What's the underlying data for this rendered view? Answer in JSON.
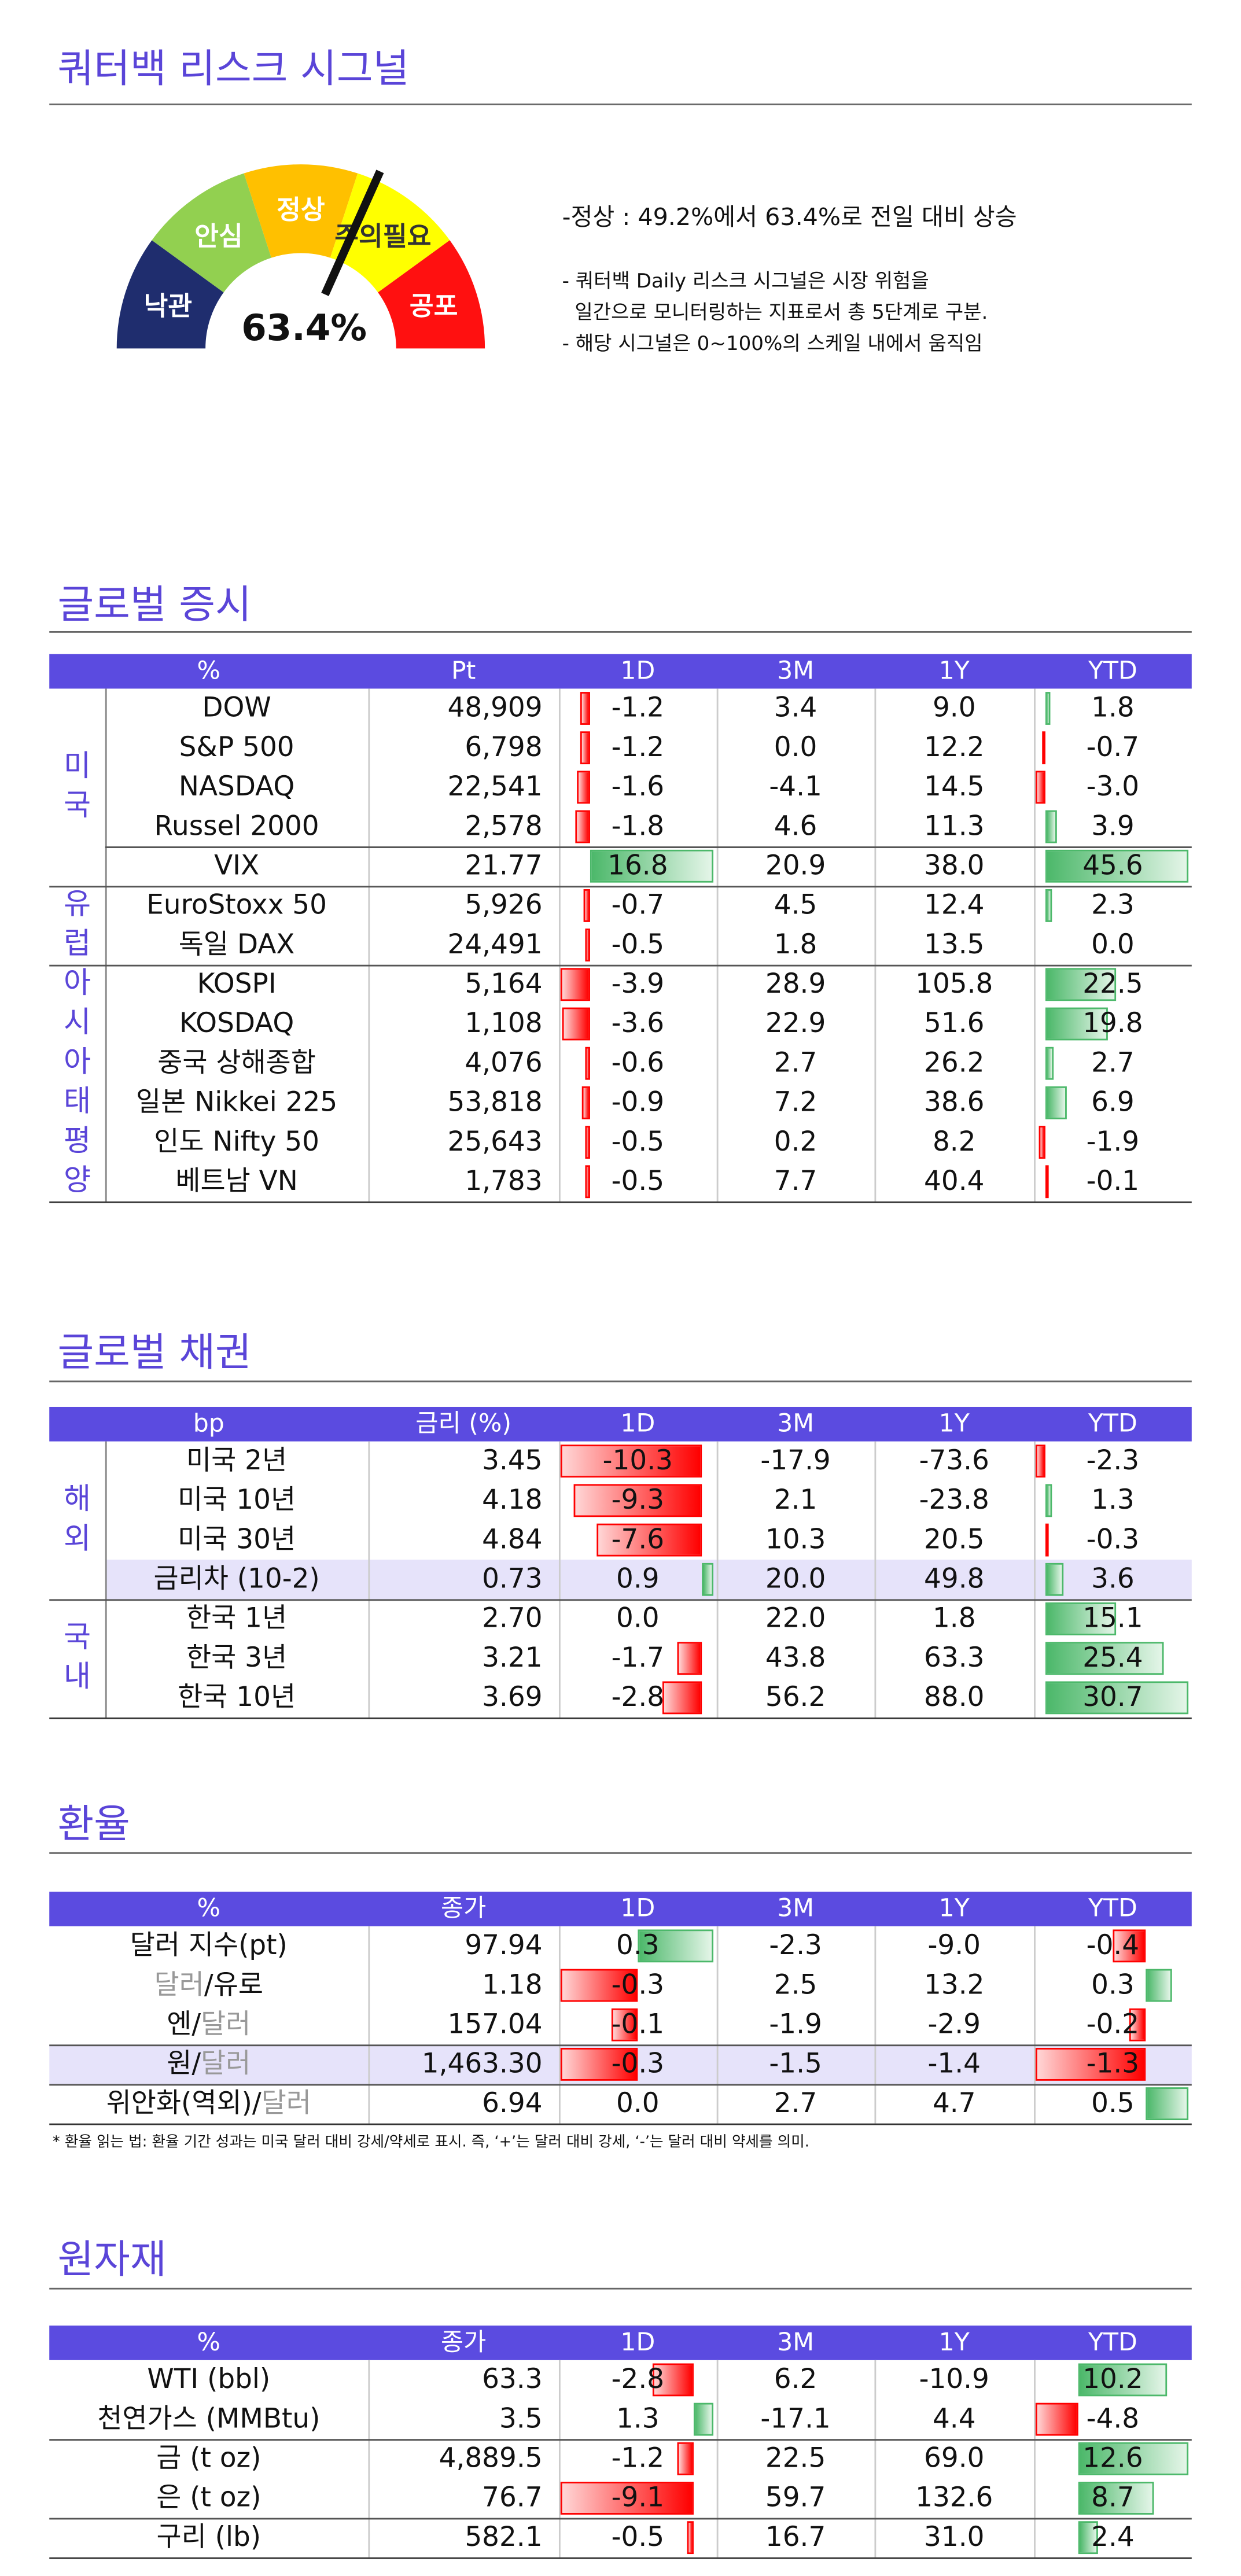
{
  "header": {
    "title": "쿼터백 리스크 시그널"
  },
  "gauge": {
    "levels": [
      "낙관",
      "안심",
      "정상",
      "주의필요",
      "공포"
    ],
    "value": 63.4,
    "value_label": "63.4%"
  },
  "summary": "-정상 : 49.2%에서 63.4%로 전일 대비 상승",
  "notes": [
    "- 쿼터백 Daily 리스크 시그널은 시장 위험을",
    "  일간으로 모니터링하는 지표로서 총 5단계로 구분.",
    "- 해당 시그널은 0~100%의 스케일 내에서 움직임"
  ],
  "sections": [
    {
      "title": "글로벌 증시",
      "columns": [
        "%",
        "Pt",
        "1D",
        "3M",
        "1Y",
        "YTD"
      ],
      "groups": [
        {
          "label": "미국",
          "rows": [
            [
              "DOW",
              "48,909",
              "-1.2",
              "3.4",
              "9.0",
              "1.8"
            ],
            [
              "S&P 500",
              "6,798",
              "-1.2",
              "0.0",
              "12.2",
              "-0.7"
            ],
            [
              "NASDAQ",
              "22,541",
              "-1.6",
              "-4.1",
              "14.5",
              "-3.0"
            ],
            [
              "Russel 2000",
              "2,578",
              "-1.8",
              "4.6",
              "11.3",
              "3.9"
            ],
            [
              "VIX",
              "21.77",
              "16.8",
              "20.9",
              "38.0",
              "45.6"
            ]
          ]
        },
        {
          "label": "유럽",
          "rows": [
            [
              "EuroStoxx 50",
              "5,926",
              "-0.7",
              "4.5",
              "12.4",
              "2.3"
            ],
            [
              "독일 DAX",
              "24,491",
              "-0.5",
              "1.8",
              "13.5",
              "0.0"
            ]
          ]
        },
        {
          "label": "아시아태평양",
          "rows": [
            [
              "KOSPI",
              "5,164",
              "-3.9",
              "28.9",
              "105.8",
              "22.5"
            ],
            [
              "KOSDAQ",
              "1,108",
              "-3.6",
              "22.9",
              "51.6",
              "19.8"
            ],
            [
              "중국 상해종합",
              "4,076",
              "-0.6",
              "2.7",
              "26.2",
              "2.7"
            ],
            [
              "일본 Nikkei 225",
              "53,818",
              "-0.9",
              "7.2",
              "38.6",
              "6.9"
            ],
            [
              "인도 Nifty 50",
              "25,643",
              "-0.5",
              "0.2",
              "8.2",
              "-1.9"
            ],
            [
              "베트남 VN",
              "1,783",
              "-0.5",
              "7.7",
              "40.4",
              "-0.1"
            ]
          ]
        }
      ]
    },
    {
      "title": "글로벌 채권",
      "columns": [
        "bp",
        "금리 (%)",
        "1D",
        "3M",
        "1Y",
        "YTD"
      ],
      "groups": [
        {
          "label": "해외",
          "rows": [
            [
              "미국 2년",
              "3.45",
              "-10.3",
              "-17.9",
              "-73.6",
              "-2.3"
            ],
            [
              "미국 10년",
              "4.18",
              "-9.3",
              "2.1",
              "-23.8",
              "1.3"
            ],
            [
              "미국 30년",
              "4.84",
              "-7.6",
              "10.3",
              "20.5",
              "-0.3"
            ],
            [
              "금리차 (10-2)",
              "0.73",
              "0.9",
              "20.0",
              "49.8",
              "3.6"
            ]
          ]
        },
        {
          "label": "국내",
          "rows": [
            [
              "한국 1년",
              "2.70",
              "0.0",
              "22.0",
              "1.8",
              "15.1"
            ],
            [
              "한국 3년",
              "3.21",
              "-1.7",
              "43.8",
              "63.3",
              "25.4"
            ],
            [
              "한국 10년",
              "3.69",
              "-2.8",
              "56.2",
              "88.0",
              "30.7"
            ]
          ]
        }
      ]
    },
    {
      "title": "환율",
      "columns": [
        "%",
        "종가",
        "1D",
        "3M",
        "1Y",
        "YTD"
      ],
      "groups": [
        {
          "rows": [
            [
              "달러 지수(pt)",
              "97.94",
              "0.3",
              "-2.3",
              "-9.0",
              "-0.4"
            ],
            [
              "달러/유로",
              "1.18",
              "-0.3",
              "2.5",
              "13.2",
              "0.3"
            ],
            [
              "엔/달러",
              "157.04",
              "-0.1",
              "-1.9",
              "-2.9",
              "-0.2"
            ],
            [
              "원/달러",
              "1,463.30",
              "-0.3",
              "-1.5",
              "-1.4",
              "-1.3"
            ],
            [
              "위안화(역외)/달러",
              "6.94",
              "0.0",
              "2.7",
              "4.7",
              "0.5"
            ]
          ]
        }
      ],
      "note": "* 환율 읽는 법: 환율 기간 성과는 미국 달러 대비 강세/약세로 표시. 즉, ‘+’는 달러 대비 강세, ‘-’는 달러 대비 약세를 의미."
    },
    {
      "title": "원자재",
      "columns": [
        "%",
        "종가",
        "1D",
        "3M",
        "1Y",
        "YTD"
      ],
      "groups": [
        {
          "rows": [
            [
              "WTI (bbl)",
              "63.3",
              "-2.8",
              "6.2",
              "-10.9",
              "10.2"
            ],
            [
              "천연가스 (MMBtu)",
              "3.5",
              "1.3",
              "-17.1",
              "4.4",
              "-4.8"
            ],
            [
              "금 (t oz)",
              "4,889.5",
              "-1.2",
              "22.5",
              "69.0",
              "12.6"
            ],
            [
              "은 (t oz)",
              "76.7",
              "-9.1",
              "59.7",
              "132.6",
              "8.7"
            ],
            [
              "구리 (lb)",
              "582.1",
              "-0.5",
              "16.7",
              "31.0",
              "2.4"
            ]
          ]
        }
      ]
    }
  ]
}
